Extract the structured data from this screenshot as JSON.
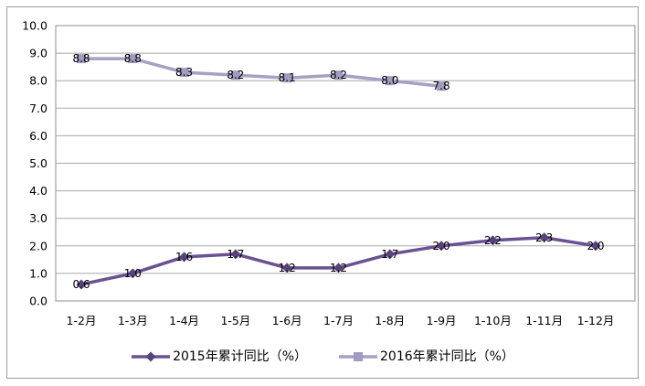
{
  "chart_data": {
    "type": "line",
    "title": "",
    "categories": [
      "1-2月",
      "1-3月",
      "1-4月",
      "1-5月",
      "1-6月",
      "1-7月",
      "1-8月",
      "1-9月",
      "1-10月",
      "1-11月",
      "1-12月"
    ],
    "series": [
      {
        "name": "2015年累计同比（%）",
        "marker": "diamond",
        "color": "#6A5292",
        "marker_color": "#58427A",
        "values": [
          0.6,
          1.0,
          1.6,
          1.7,
          1.2,
          1.2,
          1.7,
          2.0,
          2.2,
          2.3,
          2.0
        ]
      },
      {
        "name": "2016年累计同比（%）",
        "marker": "square",
        "color": "#A7A0C4",
        "marker_color": "#A29AC0",
        "values": [
          8.8,
          8.8,
          8.3,
          8.2,
          8.1,
          8.2,
          8.0,
          7.8
        ]
      }
    ],
    "ylim": [
      0,
      10
    ],
    "ytick_labels": [
      "0.0",
      "1.0",
      "2.0",
      "3.0",
      "4.0",
      "5.0",
      "6.0",
      "7.0",
      "8.0",
      "9.0",
      "10.0"
    ],
    "grid": true,
    "legend_position": "bottom",
    "data_labels": true
  },
  "colors": {
    "grid": "#a8a8a8",
    "plot_border": "#8c8c8c",
    "frame_border": "#9b9b9b",
    "text": "#000000",
    "background": "#ffffff"
  }
}
